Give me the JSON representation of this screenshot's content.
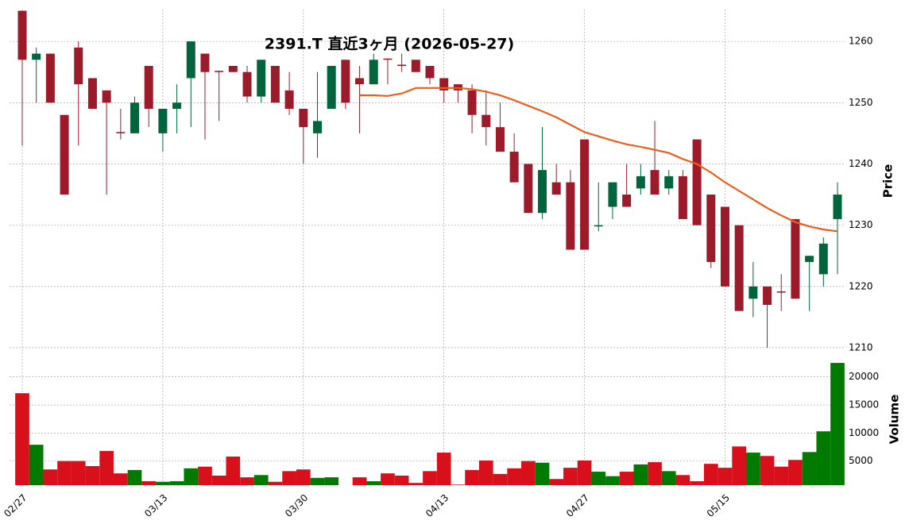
{
  "chart_data": {
    "type": "candlestick",
    "title": "2391.T  直近3ヶ月  (2026-05-27)",
    "ylabel": "Price",
    "y2label": "Volume",
    "categories": [
      "02/27",
      null,
      null,
      null,
      null,
      null,
      null,
      null,
      null,
      null,
      "03/13",
      null,
      null,
      null,
      null,
      null,
      null,
      null,
      null,
      null,
      "03/30",
      null,
      null,
      null,
      null,
      null,
      null,
      null,
      null,
      null,
      "04/13",
      null,
      null,
      null,
      null,
      null,
      null,
      null,
      null,
      null,
      "04/27",
      null,
      null,
      null,
      null,
      null,
      null,
      null,
      null,
      null,
      "05/15",
      null,
      null,
      null,
      null,
      null,
      null,
      null,
      null
    ],
    "open": [
      1265,
      1257,
      1258,
      1248,
      1259,
      1254,
      1252,
      1245.2,
      1245,
      1256,
      1245,
      1249,
      1254,
      1258,
      1255.2,
      1256,
      1255,
      1251,
      1256,
      1252,
      1249,
      1245,
      1249,
      1257,
      1254,
      1253,
      1257.2,
      1256.2,
      1257,
      1256,
      1254,
      1253,
      1252,
      1248,
      1246,
      1242,
      1240,
      1232,
      1237,
      1237,
      1244,
      1229.8,
      1233,
      1235,
      1236,
      1239,
      1236,
      1238,
      1244,
      1235,
      1233,
      1230,
      1218,
      1220,
      1219.2,
      1231,
      1224,
      1222,
      1231
    ],
    "high": [
      1265,
      1259,
      1258,
      1248,
      1260,
      1254,
      1252,
      1249,
      1251,
      1256,
      1249,
      1253,
      1260,
      1258,
      1255.2,
      1256,
      1256,
      1257,
      1256,
      1255,
      1249,
      1255,
      1256,
      1257,
      1256,
      1258,
      1257.2,
      1258,
      1257,
      1256,
      1254,
      1253,
      1253,
      1252,
      1250,
      1245,
      1240,
      1246,
      1240,
      1239,
      1244,
      1237,
      1237,
      1240,
      1240,
      1247,
      1239,
      1239,
      1244,
      1235,
      1233,
      1230,
      1224,
      1220,
      1222,
      1231,
      1225,
      1228,
      1237
    ],
    "low": [
      1243,
      1250,
      1250,
      1235,
      1243,
      1249,
      1235,
      1244,
      1245,
      1246,
      1242,
      1245,
      1246,
      1244,
      1247,
      1255,
      1250,
      1250,
      1250,
      1248,
      1240,
      1241,
      1249,
      1249,
      1245,
      1253,
      1253,
      1255,
      1255,
      1253,
      1250,
      1250,
      1245,
      1243,
      1242,
      1237,
      1232,
      1231,
      1235,
      1226,
      1226,
      1229,
      1231,
      1233,
      1235,
      1235,
      1235,
      1231,
      1230,
      1223,
      1220,
      1216,
      1215,
      1210,
      1216,
      1218,
      1216,
      1220,
      1222
    ],
    "close": [
      1257,
      1258,
      1250,
      1235,
      1253,
      1249,
      1250,
      1245,
      1250,
      1249,
      1249,
      1250,
      1260,
      1255,
      1255,
      1255,
      1251,
      1257,
      1250,
      1249,
      1246,
      1247,
      1256,
      1250,
      1253,
      1257,
      1257,
      1256,
      1255,
      1254,
      1252,
      1252,
      1248,
      1246,
      1242,
      1237,
      1232,
      1239,
      1235,
      1226,
      1226,
      1230,
      1237,
      1233,
      1238,
      1235,
      1238,
      1231,
      1230,
      1224,
      1220,
      1216,
      1220,
      1217,
      1219,
      1218,
      1225,
      1227,
      1235
    ],
    "volume": [
      17100,
      7900,
      3500,
      5000,
      5000,
      4100,
      6800,
      2800,
      3400,
      1400,
      1300,
      1400,
      3700,
      4000,
      2400,
      5800,
      2100,
      2500,
      1300,
      3200,
      3500,
      2000,
      2100,
      700,
      2100,
      1400,
      2800,
      2400,
      1100,
      3200,
      6500,
      800,
      3400,
      5100,
      2700,
      3700,
      5000,
      4700,
      1800,
      3800,
      5100,
      3100,
      2300,
      3100,
      4400,
      4800,
      3200,
      2500,
      1400,
      4500,
      3800,
      7600,
      6500,
      5900,
      4000,
      5200,
      6600,
      10300,
      22500
    ],
    "ma": [
      null,
      null,
      null,
      null,
      null,
      null,
      null,
      null,
      null,
      null,
      null,
      null,
      null,
      null,
      null,
      null,
      null,
      null,
      null,
      null,
      null,
      null,
      null,
      null,
      1251.2,
      1251.2,
      1251.1,
      1251.5,
      1252.4,
      1252.4,
      1252.4,
      1252.4,
      1252.2,
      1251.8,
      1251.2,
      1250.4,
      1249.5,
      1248.6,
      1247.6,
      1246.4,
      1245.2,
      1244.5,
      1243.8,
      1243.2,
      1242.8,
      1242.3,
      1241.8,
      1240.8,
      1240,
      1238.6,
      1237,
      1235.6,
      1234.2,
      1232.8,
      1231.6,
      1230.5,
      1229.8,
      1229.3,
      1229.0
    ],
    "up_color": "#00643c",
    "down_color": "#9b1b2b",
    "volume_up_color": "#007a00",
    "volume_down_color": "#d8101c",
    "ma_color": "#e8601c",
    "ylim": [
      1208.7,
      1265.2
    ],
    "yticks": [
      1210,
      1220,
      1230,
      1240,
      1250,
      1260
    ],
    "y2lim": [
      700,
      23500
    ],
    "y2ticks": [
      5000,
      10000,
      15000,
      20000
    ],
    "grid": true
  }
}
